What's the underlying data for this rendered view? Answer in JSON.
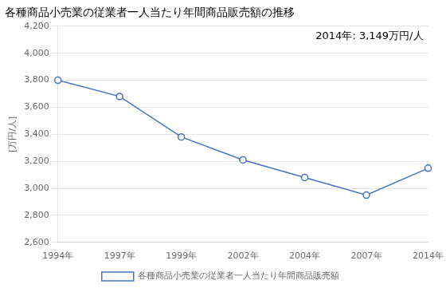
{
  "chart_data": {
    "type": "line",
    "title": "各種商品小売業の従業者一人当たり年間商品販売額の推移",
    "y_label": "[万円/人]",
    "categories": [
      "1994年",
      "1997年",
      "1999年",
      "2002年",
      "2004年",
      "2007年",
      "2014年"
    ],
    "series": [
      {
        "name": "各種商品小売業の従業者一人当たり年間商品販売額",
        "color": "#4472c4",
        "marker": "circle",
        "values": [
          3800,
          3680,
          3380,
          3210,
          3080,
          2950,
          3149
        ]
      }
    ],
    "ylim": [
      2600,
      4200
    ],
    "yticks": [
      {
        "value": 2600,
        "label": "2,600"
      },
      {
        "value": 2800,
        "label": "2,800"
      },
      {
        "value": 3000,
        "label": "3,000"
      },
      {
        "value": 3200,
        "label": "3,200"
      },
      {
        "value": 3400,
        "label": "3,400"
      },
      {
        "value": 3600,
        "label": "3,600"
      },
      {
        "value": 3800,
        "label": "3,800"
      },
      {
        "value": 4000,
        "label": "4,000"
      },
      {
        "value": 4200,
        "label": "4,200"
      }
    ],
    "annotation": "2014年: 3,149万円/人",
    "grid": "y",
    "legend": "bottom"
  }
}
